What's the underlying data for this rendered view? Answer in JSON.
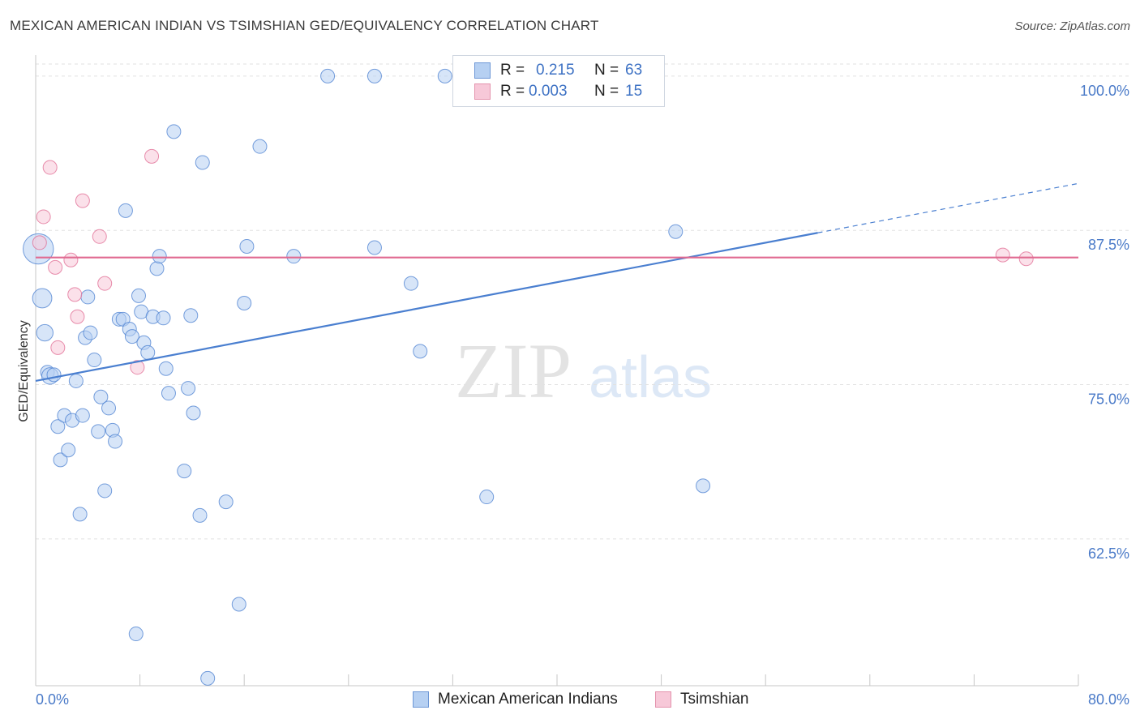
{
  "chart_data": {
    "type": "scatter",
    "title": "MEXICAN AMERICAN INDIAN VS TSIMSHIAN GED/EQUIVALENCY CORRELATION CHART",
    "source": "Source: ZipAtlas.com",
    "ylabel": "GED/Equivalency",
    "xlabel": "",
    "xlim": [
      0,
      80
    ],
    "ylim": [
      50.6,
      101.7
    ],
    "x_tick_labels": [
      "0.0%",
      "80.0%"
    ],
    "y_ticks": [
      {
        "value": 100,
        "label": "100.0%"
      },
      {
        "value": 87.5,
        "label": "87.5%"
      },
      {
        "value": 75,
        "label": "75.0%"
      },
      {
        "value": 62.5,
        "label": "62.5%"
      }
    ],
    "watermark": {
      "zip": "ZIP",
      "atlas": "atlas"
    },
    "legend_stats": [
      {
        "r_label": "R =",
        "r_value": "0.215",
        "n_label": "N =",
        "n_value": "63"
      },
      {
        "r_label": "R =",
        "r_value": "0.003",
        "n_label": "N =",
        "n_value": "15"
      }
    ],
    "series": [
      {
        "name": "Mexican American Indians",
        "color": "#4a7fd0",
        "fill": "#b6d0f2",
        "trend": {
          "x0": 0,
          "y0": 75.3,
          "x1": 60,
          "y1": 87.3,
          "dash_to_x": 80,
          "dash_to_y": 91.3
        },
        "points": [
          [
            0.2,
            86.0,
            2.2
          ],
          [
            0.5,
            82.0,
            1.4
          ],
          [
            0.7,
            79.2,
            1.2
          ],
          [
            0.9,
            76.0,
            1.0
          ],
          [
            1.1,
            75.7,
            1.2
          ],
          [
            1.4,
            75.8,
            1.0
          ],
          [
            1.7,
            71.6,
            1.0
          ],
          [
            1.9,
            68.9,
            1.0
          ],
          [
            2.2,
            72.5,
            1.0
          ],
          [
            2.5,
            69.7,
            1.0
          ],
          [
            2.8,
            72.1,
            1.0
          ],
          [
            3.1,
            75.3,
            1.0
          ],
          [
            3.4,
            64.5,
            1.0
          ],
          [
            3.6,
            72.5,
            1.0
          ],
          [
            3.8,
            78.8,
            1.0
          ],
          [
            4.0,
            82.1,
            1.0
          ],
          [
            4.2,
            79.2,
            1.0
          ],
          [
            4.5,
            77.0,
            1.0
          ],
          [
            4.8,
            71.2,
            1.0
          ],
          [
            5.0,
            74.0,
            1.0
          ],
          [
            5.3,
            66.4,
            1.0
          ],
          [
            5.6,
            73.1,
            1.0
          ],
          [
            5.9,
            71.3,
            1.0
          ],
          [
            6.1,
            70.4,
            1.0
          ],
          [
            6.4,
            80.3,
            1.0
          ],
          [
            6.7,
            80.3,
            1.0
          ],
          [
            6.9,
            89.1,
            1.0
          ],
          [
            7.2,
            79.5,
            1.0
          ],
          [
            7.4,
            78.9,
            1.0
          ],
          [
            7.7,
            54.8,
            1.0
          ],
          [
            7.9,
            82.2,
            1.0
          ],
          [
            8.1,
            80.9,
            1.0
          ],
          [
            8.3,
            78.4,
            1.0
          ],
          [
            8.6,
            77.6,
            1.0
          ],
          [
            9.0,
            80.5,
            1.0
          ],
          [
            9.3,
            84.4,
            1.0
          ],
          [
            9.5,
            85.4,
            1.0
          ],
          [
            9.8,
            80.4,
            1.0
          ],
          [
            10.0,
            76.3,
            1.0
          ],
          [
            10.2,
            74.3,
            1.0
          ],
          [
            10.6,
            95.5,
            1.0
          ],
          [
            11.4,
            68.0,
            1.0
          ],
          [
            11.7,
            74.7,
            1.0
          ],
          [
            11.9,
            80.6,
            1.0
          ],
          [
            12.1,
            72.7,
            1.0
          ],
          [
            12.6,
            64.4,
            1.0
          ],
          [
            12.8,
            93.0,
            1.0
          ],
          [
            13.2,
            51.2,
            1.0
          ],
          [
            14.6,
            65.5,
            1.0
          ],
          [
            15.6,
            57.2,
            1.0
          ],
          [
            16.0,
            81.6,
            1.0
          ],
          [
            16.2,
            86.2,
            1.0
          ],
          [
            17.2,
            94.3,
            1.0
          ],
          [
            19.8,
            85.4,
            1.0
          ],
          [
            22.4,
            100.0,
            1.0
          ],
          [
            26.0,
            100.0,
            1.0
          ],
          [
            26.0,
            86.1,
            1.0
          ],
          [
            28.8,
            83.2,
            1.0
          ],
          [
            29.5,
            77.7,
            1.0
          ],
          [
            31.4,
            100.0,
            1.0
          ],
          [
            34.6,
            65.9,
            1.0
          ],
          [
            49.1,
            87.4,
            1.0
          ],
          [
            51.2,
            66.8,
            1.0
          ]
        ]
      },
      {
        "name": "Tsimshian",
        "color": "#e06a91",
        "fill": "#f7c8d8",
        "trend": {
          "x0": 0,
          "y0": 85.3,
          "x1": 80,
          "y1": 85.3
        },
        "points": [
          [
            0.3,
            86.5
          ],
          [
            0.6,
            88.6
          ],
          [
            1.1,
            92.6
          ],
          [
            1.5,
            84.5
          ],
          [
            1.7,
            78.0
          ],
          [
            2.7,
            85.1
          ],
          [
            3.0,
            82.3
          ],
          [
            3.2,
            80.5
          ],
          [
            3.6,
            89.9
          ],
          [
            4.9,
            87.0
          ],
          [
            5.3,
            83.2
          ],
          [
            7.8,
            76.4
          ],
          [
            8.9,
            93.5
          ],
          [
            74.2,
            85.5
          ],
          [
            76.0,
            85.2
          ]
        ]
      }
    ]
  }
}
